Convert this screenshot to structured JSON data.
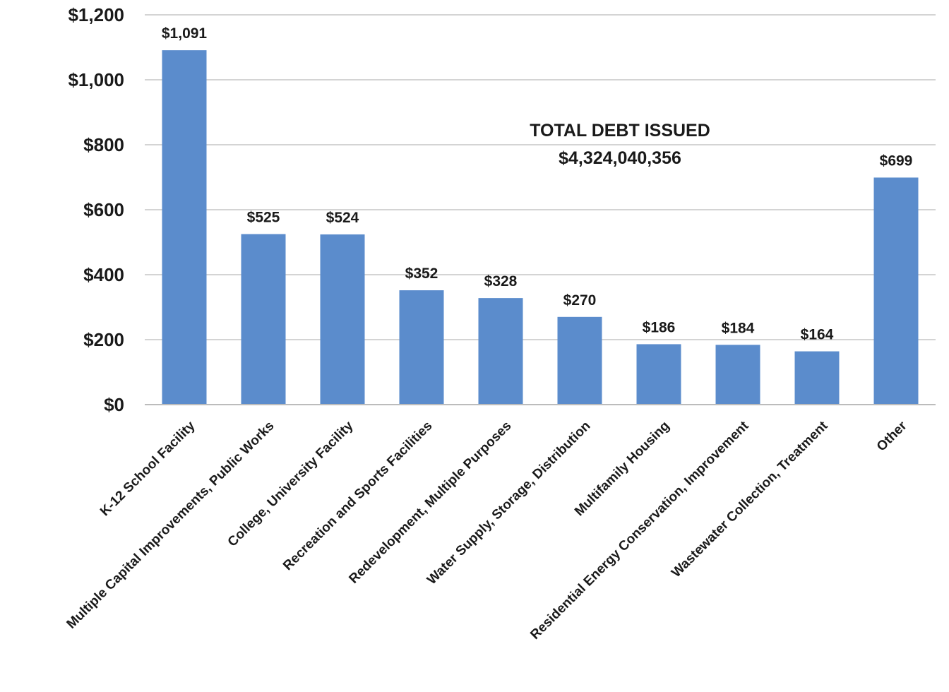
{
  "chart_data": {
    "type": "bar",
    "categories": [
      "K-12 School Facility",
      "Multiple Capital Improvements, Public Works",
      "College, University Facility",
      "Recreation and Sports Facilities",
      "Redevelopment, Multiple Purposes",
      "Water Supply, Storage, Distribution",
      "Multifamily Housing",
      "Residential Energy Conservation, Improvement",
      "Wastewater Collection, Treatment",
      "Other"
    ],
    "values": [
      1091,
      525,
      524,
      352,
      328,
      270,
      186,
      184,
      164,
      699
    ],
    "data_labels": [
      "$1,091",
      "$525",
      "$524",
      "$352",
      "$328",
      "$270",
      "$186",
      "$184",
      "$164",
      "$699"
    ],
    "ylim": [
      0,
      1200
    ],
    "yticks": [
      0,
      200,
      400,
      600,
      800,
      1000,
      1200
    ],
    "ytick_labels": [
      "$0",
      "$200",
      "$400",
      "$600",
      "$800",
      "$1,000",
      "$1,200"
    ],
    "title": "",
    "xlabel": "",
    "ylabel": "",
    "grid": true,
    "legend": "none",
    "annotation": {
      "line1": "TOTAL DEBT ISSUED",
      "line2": "$4,324,040,356"
    },
    "colors": {
      "bar": "#5b8ccc",
      "grid": "#d4d4d4",
      "axis": "#bcbcbc",
      "text": "#1a1a1a"
    }
  }
}
